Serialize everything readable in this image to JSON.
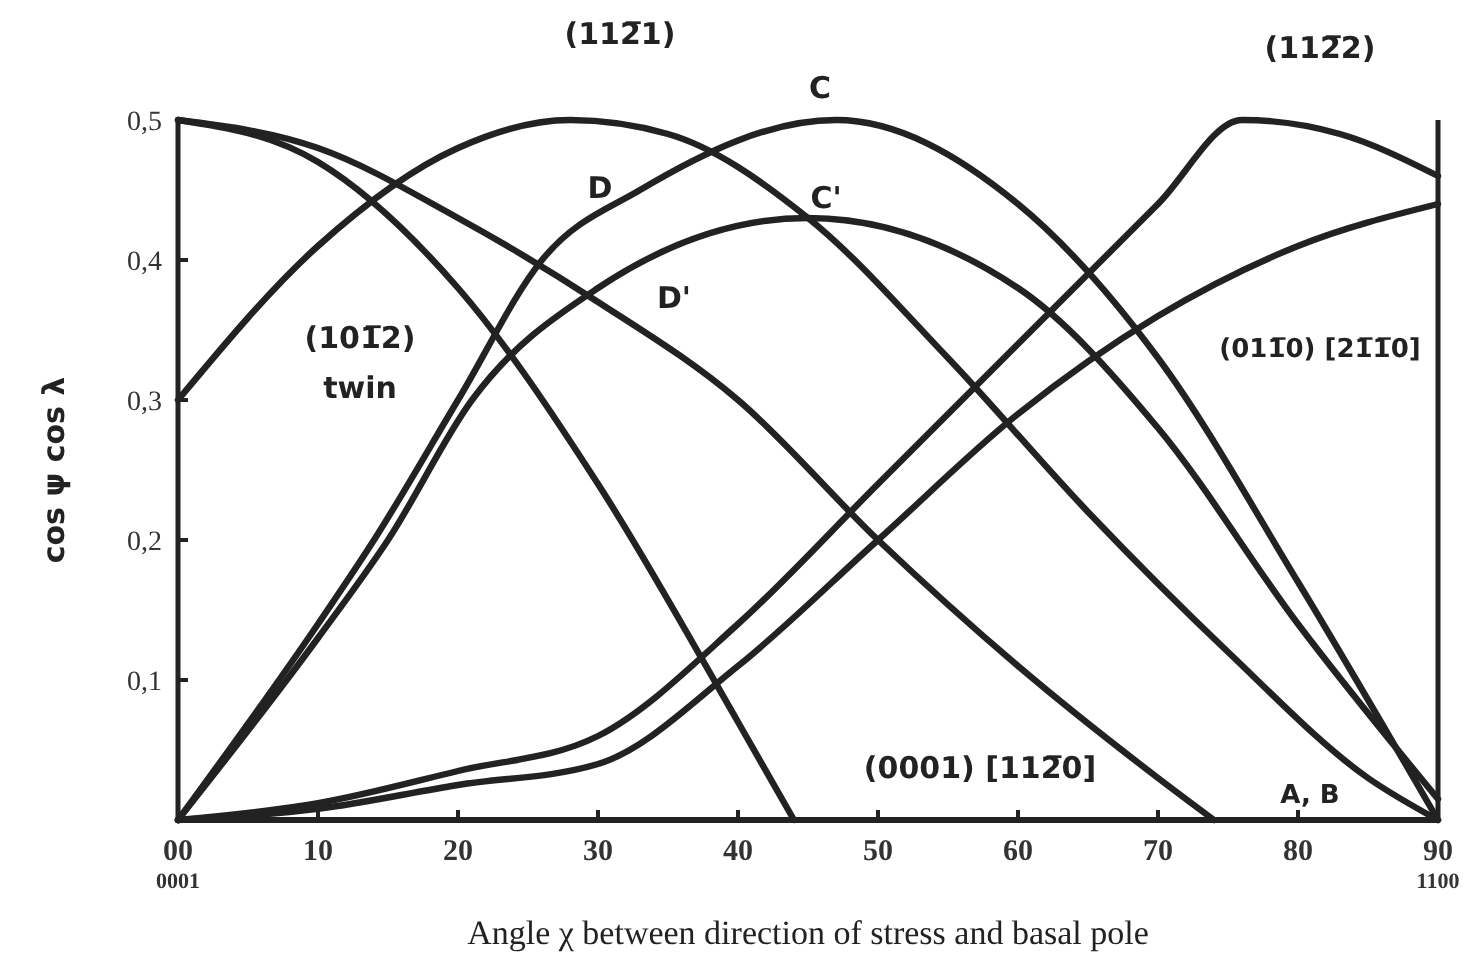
{
  "chart_data": {
    "type": "line",
    "xlabel": "Angle χ between direction  of stress and  basal pole",
    "ylabel": "cos ψ  cos λ",
    "xlim": [
      0,
      90
    ],
    "ylim": [
      0,
      0.5
    ],
    "xticks": [
      {
        "value": 0,
        "label": "00$_{0001}$"
      },
      10,
      20,
      30,
      40,
      50,
      60,
      70,
      80,
      {
        "value": 90,
        "label": "90$_{1100}$"
      }
    ],
    "yticks": [
      {
        "value": 0.1,
        "label": "0,1"
      },
      {
        "value": 0.2,
        "label": "0,2"
      },
      {
        "value": 0.3,
        "label": "0,3"
      },
      {
        "value": 0.4,
        "label": "0,4"
      },
      {
        "value": 0.5,
        "label": "0,5"
      }
    ],
    "grid": false,
    "marker": "none",
    "line_style": "solid",
    "series": [
      {
        "color": "#222222",
        "x": [
          0,
          10,
          20,
          30,
          40,
          44
        ],
        "values": [
          0.5,
          0.47,
          0.38,
          0.24,
          0.07,
          0
        ]
      },
      {
        "color": "#222222",
        "x": [
          0,
          10,
          20,
          30,
          40,
          50,
          60,
          70,
          74
        ],
        "values": [
          0.5,
          0.48,
          0.43,
          0.37,
          0.3,
          0.2,
          0.11,
          0.03,
          0
        ]
      },
      {
        "color": "#222222",
        "x": [
          0,
          10,
          20,
          28,
          35,
          45,
          55,
          65,
          75,
          85,
          90
        ],
        "values": [
          0.3,
          0.41,
          0.48,
          0.5,
          0.49,
          0.43,
          0.33,
          0.22,
          0.12,
          0.03,
          0
        ]
      },
      {
        "color": "#222222",
        "x": [
          0,
          10,
          14,
          20,
          26,
          33,
          47,
          60,
          70,
          80,
          90
        ],
        "values": [
          0,
          0.14,
          0.2,
          0.3,
          0.4,
          0.45,
          0.5,
          0.44,
          0.33,
          0.17,
          0
        ]
      },
      {
        "color": "#222222",
        "x": [
          0,
          10,
          15,
          21,
          30,
          45,
          60,
          70,
          80,
          90
        ],
        "values": [
          0,
          0.13,
          0.2,
          0.3,
          0.38,
          0.43,
          0.38,
          0.28,
          0.14,
          0.015
        ]
      },
      {
        "color": "#222222",
        "x": [
          0,
          10,
          20,
          30,
          40,
          50,
          60,
          70,
          76,
          83,
          90
        ],
        "values": [
          0,
          0.012,
          0.035,
          0.06,
          0.14,
          0.24,
          0.34,
          0.44,
          0.5,
          0.49,
          0.46
        ]
      },
      {
        "color": "#222222",
        "x": [
          0,
          10,
          20,
          30,
          40,
          50,
          60,
          70,
          80,
          90
        ],
        "values": [
          0,
          0.008,
          0.025,
          0.04,
          0.11,
          0.2,
          0.29,
          0.36,
          0.41,
          0.44
        ]
      }
    ],
    "annotations": [
      "(112̅1)",
      "C",
      "D",
      "C'",
      "D'",
      "(101̅2)",
      "twin",
      "(112̅2)",
      "(011̅0)  [21̅1̅0]",
      "(0001)  [112̅0]",
      "A, B"
    ]
  }
}
